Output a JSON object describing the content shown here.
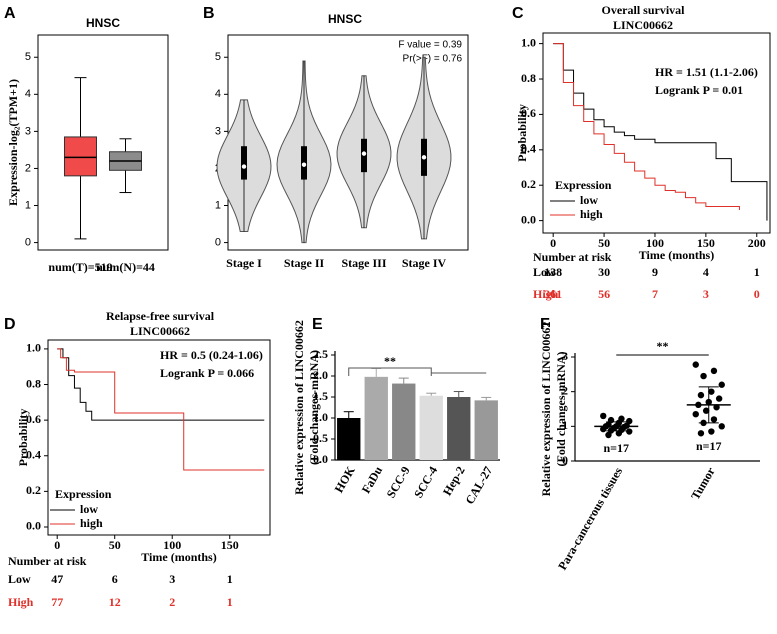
{
  "chart_data": [
    {
      "panel": "A",
      "type": "box",
      "title": "HNSC",
      "ylabel": "Expression-log₂(TPM+1)",
      "categories": [
        "num(T)=519",
        "num(N)=44"
      ],
      "boxes": [
        {
          "min": 0.1,
          "q1": 1.8,
          "median": 2.3,
          "q3": 2.85,
          "max": 4.45,
          "color": "#f04a4a"
        },
        {
          "min": 1.35,
          "q1": 1.95,
          "median": 2.2,
          "q3": 2.45,
          "max": 2.8,
          "color": "#8c8c8c"
        }
      ],
      "ylim": [
        -0.2,
        5.6
      ],
      "yticks": [
        0,
        1,
        2,
        3,
        4,
        5
      ]
    },
    {
      "panel": "B",
      "type": "violin",
      "title": "HNSC",
      "annotations": [
        "F value = 0.39",
        "Pr(>F) = 0.76"
      ],
      "categories": [
        "Stage I",
        "Stage II",
        "Stage III",
        "Stage IV"
      ],
      "color": "#dcdcdc",
      "boxes": [
        {
          "min": 0.3,
          "q1": 1.7,
          "median": 2.05,
          "q3": 2.6,
          "max": 3.85
        },
        {
          "min": 0.0,
          "q1": 1.7,
          "median": 2.1,
          "q3": 2.6,
          "max": 4.9
        },
        {
          "min": 0.4,
          "q1": 1.9,
          "median": 2.4,
          "q3": 2.8,
          "max": 4.5
        },
        {
          "min": 0.1,
          "q1": 1.8,
          "median": 2.3,
          "q3": 2.8,
          "max": 5.0
        }
      ],
      "ylim": [
        -0.2,
        5.6
      ],
      "yticks": [
        0,
        1,
        2,
        3,
        4,
        5
      ]
    },
    {
      "panel": "C",
      "type": "survival",
      "title": [
        "Overall survival",
        "LINC00662"
      ],
      "annotations": [
        "HR = 1.51 (1.1-2.06)",
        "Logrank P = 0.01"
      ],
      "xlabel": "Time (months)",
      "ylabel": "Probability",
      "legend_title": "Expression",
      "series": [
        {
          "name": "low",
          "color": "#000000",
          "x": [
            0,
            10,
            20,
            30,
            40,
            50,
            60,
            70,
            80,
            100,
            120,
            150,
            160,
            175,
            210
          ],
          "values": [
            1,
            0.85,
            0.72,
            0.63,
            0.57,
            0.53,
            0.5,
            0.48,
            0.46,
            0.44,
            0.44,
            0.44,
            0.35,
            0.22,
            0
          ]
        },
        {
          "name": "high",
          "color": "#e0302a",
          "x": [
            0,
            10,
            20,
            30,
            40,
            50,
            60,
            70,
            80,
            90,
            100,
            110,
            120,
            130,
            140,
            150,
            183
          ],
          "values": [
            1,
            0.78,
            0.65,
            0.56,
            0.49,
            0.43,
            0.38,
            0.33,
            0.28,
            0.24,
            0.2,
            0.17,
            0.16,
            0.13,
            0.1,
            0.08,
            0.06
          ]
        }
      ],
      "xlim": [
        -10,
        213
      ],
      "xticks": [
        0,
        50,
        100,
        150,
        200
      ],
      "ylim": [
        -0.07,
        1.06
      ],
      "yticks": [
        {
          "value": 0,
          "label": "0.0"
        },
        {
          "value": 0.2,
          "label": "0.2"
        },
        {
          "value": 0.4,
          "label": "0.4"
        },
        {
          "value": 0.6,
          "label": "0.6"
        },
        {
          "value": 0.8,
          "label": "0.8"
        },
        {
          "value": 1,
          "label": "1.0"
        }
      ],
      "risk_table": {
        "title": "Number at risk",
        "rows": [
          {
            "name": "Low",
            "color": "#000000",
            "values": [
              138,
              30,
              9,
              4,
              1
            ]
          },
          {
            "name": "High",
            "color": "#e0302a",
            "values": [
              361,
              56,
              7,
              3,
              0
            ]
          }
        ]
      }
    },
    {
      "panel": "D",
      "type": "survival",
      "title": [
        "Relapse-free survival",
        "LINC00662"
      ],
      "annotations": [
        "HR = 0.5 (0.24-1.06)",
        "Logrank P = 0.066"
      ],
      "xlabel": "Time (months)",
      "ylabel": "Probability",
      "legend_title": "Expression",
      "series": [
        {
          "name": "low",
          "color": "#000000",
          "x": [
            0,
            5,
            10,
            15,
            20,
            25,
            30,
            40,
            50,
            180
          ],
          "values": [
            1,
            0.95,
            0.85,
            0.78,
            0.7,
            0.65,
            0.6,
            0.6,
            0.6,
            0.6
          ]
        },
        {
          "name": "high",
          "color": "#e0302a",
          "x": [
            0,
            3,
            8,
            15,
            45,
            50,
            108,
            110,
            180
          ],
          "values": [
            1,
            0.95,
            0.88,
            0.87,
            0.87,
            0.64,
            0.64,
            0.32,
            0.32
          ]
        }
      ],
      "xlim": [
        -8,
        185
      ],
      "xticks": [
        0,
        50,
        100,
        150
      ],
      "ylim": [
        -0.045,
        1.05
      ],
      "yticks": [
        {
          "value": 0,
          "label": "0.0"
        },
        {
          "value": 0.2,
          "label": "0.2"
        },
        {
          "value": 0.4,
          "label": "0.4"
        },
        {
          "value": 0.6,
          "label": "0.6"
        },
        {
          "value": 0.8,
          "label": "0.8"
        },
        {
          "value": 1,
          "label": "1.0"
        }
      ],
      "risk_table": {
        "title": "Number at risk",
        "rows": [
          {
            "name": "Low",
            "color": "#000000",
            "values": [
              47,
              6,
              3,
              1
            ]
          },
          {
            "name": "High",
            "color": "#e0302a",
            "values": [
              77,
              12,
              2,
              1
            ]
          }
        ]
      }
    },
    {
      "panel": "E",
      "type": "bar",
      "ylabel": [
        "Relative expression of LINC00662",
        "(Fold changes-mRNA)"
      ],
      "annotations": [
        "**"
      ],
      "categories": [
        "HOK",
        "FaDu",
        "SCC-9",
        "SCC-4",
        "Hep-2",
        "CAL-27"
      ],
      "values": [
        1.0,
        1.98,
        1.82,
        1.53,
        1.5,
        1.42
      ],
      "errors": [
        0.15,
        0.2,
        0.13,
        0.06,
        0.13,
        0.07
      ],
      "colors": [
        "#000000",
        "#aaaaaa",
        "#888888",
        "#dddddd",
        "#555555",
        "#999999"
      ],
      "ylim": [
        0,
        2.5
      ],
      "yticks": [
        {
          "value": 0,
          "label": "0.0"
        },
        {
          "value": 0.5,
          "label": "0.5"
        },
        {
          "value": 1,
          "label": "1.0"
        },
        {
          "value": 1.5,
          "label": "1.5"
        },
        {
          "value": 2,
          "label": "2.0"
        },
        {
          "value": 2.5,
          "label": "2.5"
        }
      ]
    },
    {
      "panel": "F",
      "type": "dot",
      "ylabel": [
        "Relative expression of LINC00662",
        "(Fold changes-mRNA)"
      ],
      "annotations": [
        "**"
      ],
      "groups": [
        {
          "name": "Para-cancerous tissues",
          "n_label": "n=17",
          "mean": 1.0,
          "sd": 0.13,
          "points": [
            1.3,
            1.22,
            1.18,
            1.15,
            1.1,
            1.05,
            1.02,
            1.0,
            1.0,
            0.98,
            0.95,
            0.92,
            0.9,
            0.88,
            0.85,
            0.8,
            0.75
          ]
        },
        {
          "name": "Tumor",
          "n_label": "n=17",
          "mean": 1.62,
          "sd": 0.52,
          "points": [
            2.78,
            2.6,
            2.45,
            2.2,
            2.0,
            1.9,
            1.8,
            1.7,
            1.62,
            1.55,
            1.45,
            1.35,
            1.2,
            1.1,
            1.0,
            0.85,
            0.8
          ]
        }
      ],
      "ylim": [
        0,
        3
      ],
      "yticks": [
        0,
        1,
        2,
        3
      ]
    }
  ]
}
